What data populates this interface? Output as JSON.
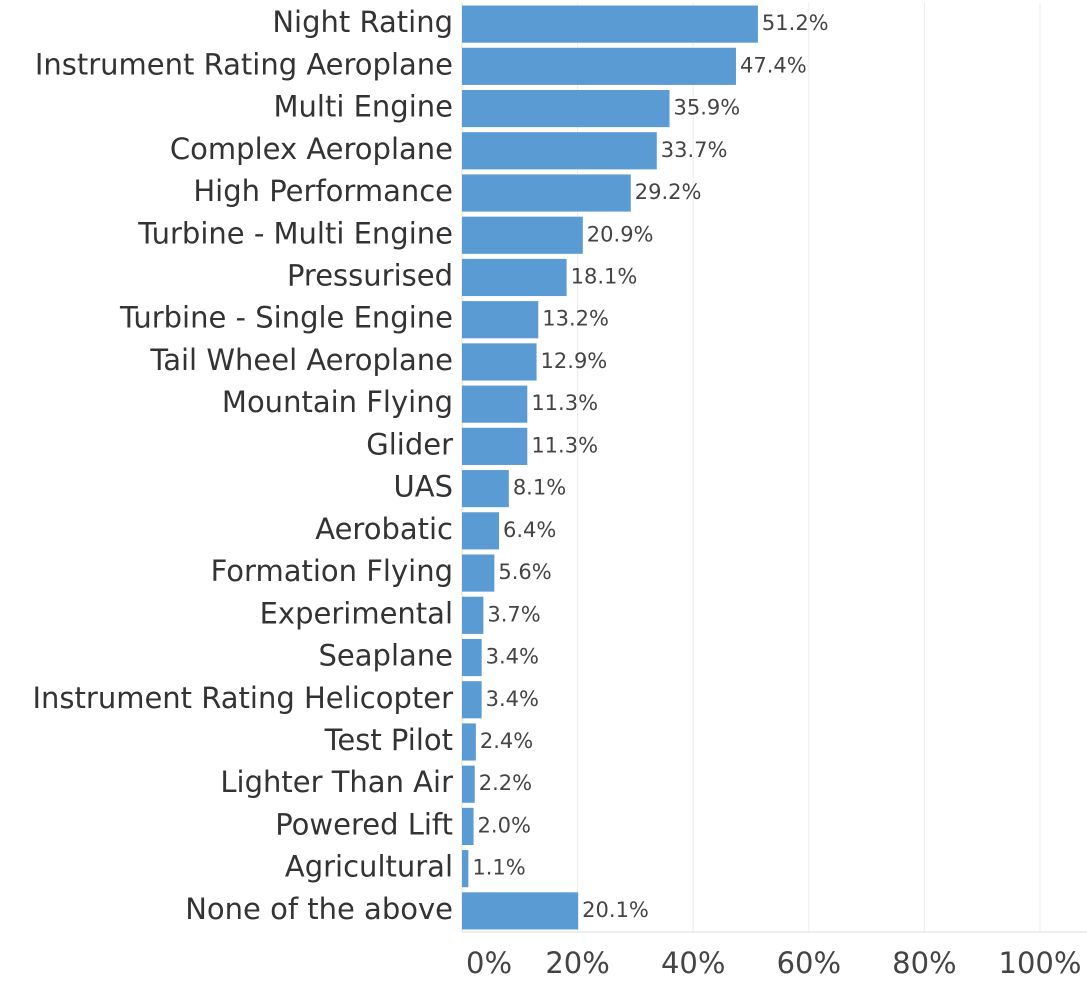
{
  "chart_data": {
    "type": "bar",
    "orientation": "horizontal",
    "categories": [
      "Night Rating",
      "Instrument Rating Aeroplane",
      "Multi Engine",
      "Complex Aeroplane",
      "High Performance",
      "Turbine - Multi Engine",
      "Pressurised",
      "Turbine - Single Engine",
      "Tail Wheel Aeroplane",
      "Mountain Flying",
      "Glider",
      "UAS",
      "Aerobatic",
      "Formation Flying",
      "Experimental",
      "Seaplane",
      "Instrument Rating Helicopter",
      "Test Pilot",
      "Lighter Than Air",
      "Powered Lift",
      "Agricultural",
      "None of the above"
    ],
    "values": [
      51.2,
      47.4,
      35.9,
      33.7,
      29.2,
      20.9,
      18.1,
      13.2,
      12.9,
      11.3,
      11.3,
      8.1,
      6.4,
      5.6,
      3.7,
      3.4,
      3.4,
      2.4,
      2.2,
      2.0,
      1.1,
      20.1
    ],
    "value_labels": [
      "51.2%",
      "47.4%",
      "35.9%",
      "33.7%",
      "29.2%",
      "20.9%",
      "18.1%",
      "13.2%",
      "12.9%",
      "11.3%",
      "11.3%",
      "8.1%",
      "6.4%",
      "5.6%",
      "3.7%",
      "3.4%",
      "3.4%",
      "2.4%",
      "2.2%",
      "2.0%",
      "1.1%",
      "20.1%"
    ],
    "color": "#5b9bd3",
    "xlim": [
      0,
      100
    ],
    "xticks": [
      {
        "value": 0,
        "label": "0%"
      },
      {
        "value": 20,
        "label": "20%"
      },
      {
        "value": 40,
        "label": "40%"
      },
      {
        "value": 60,
        "label": "60%"
      },
      {
        "value": 80,
        "label": "80%"
      },
      {
        "value": 100,
        "label": "100%"
      }
    ],
    "grid": true
  }
}
